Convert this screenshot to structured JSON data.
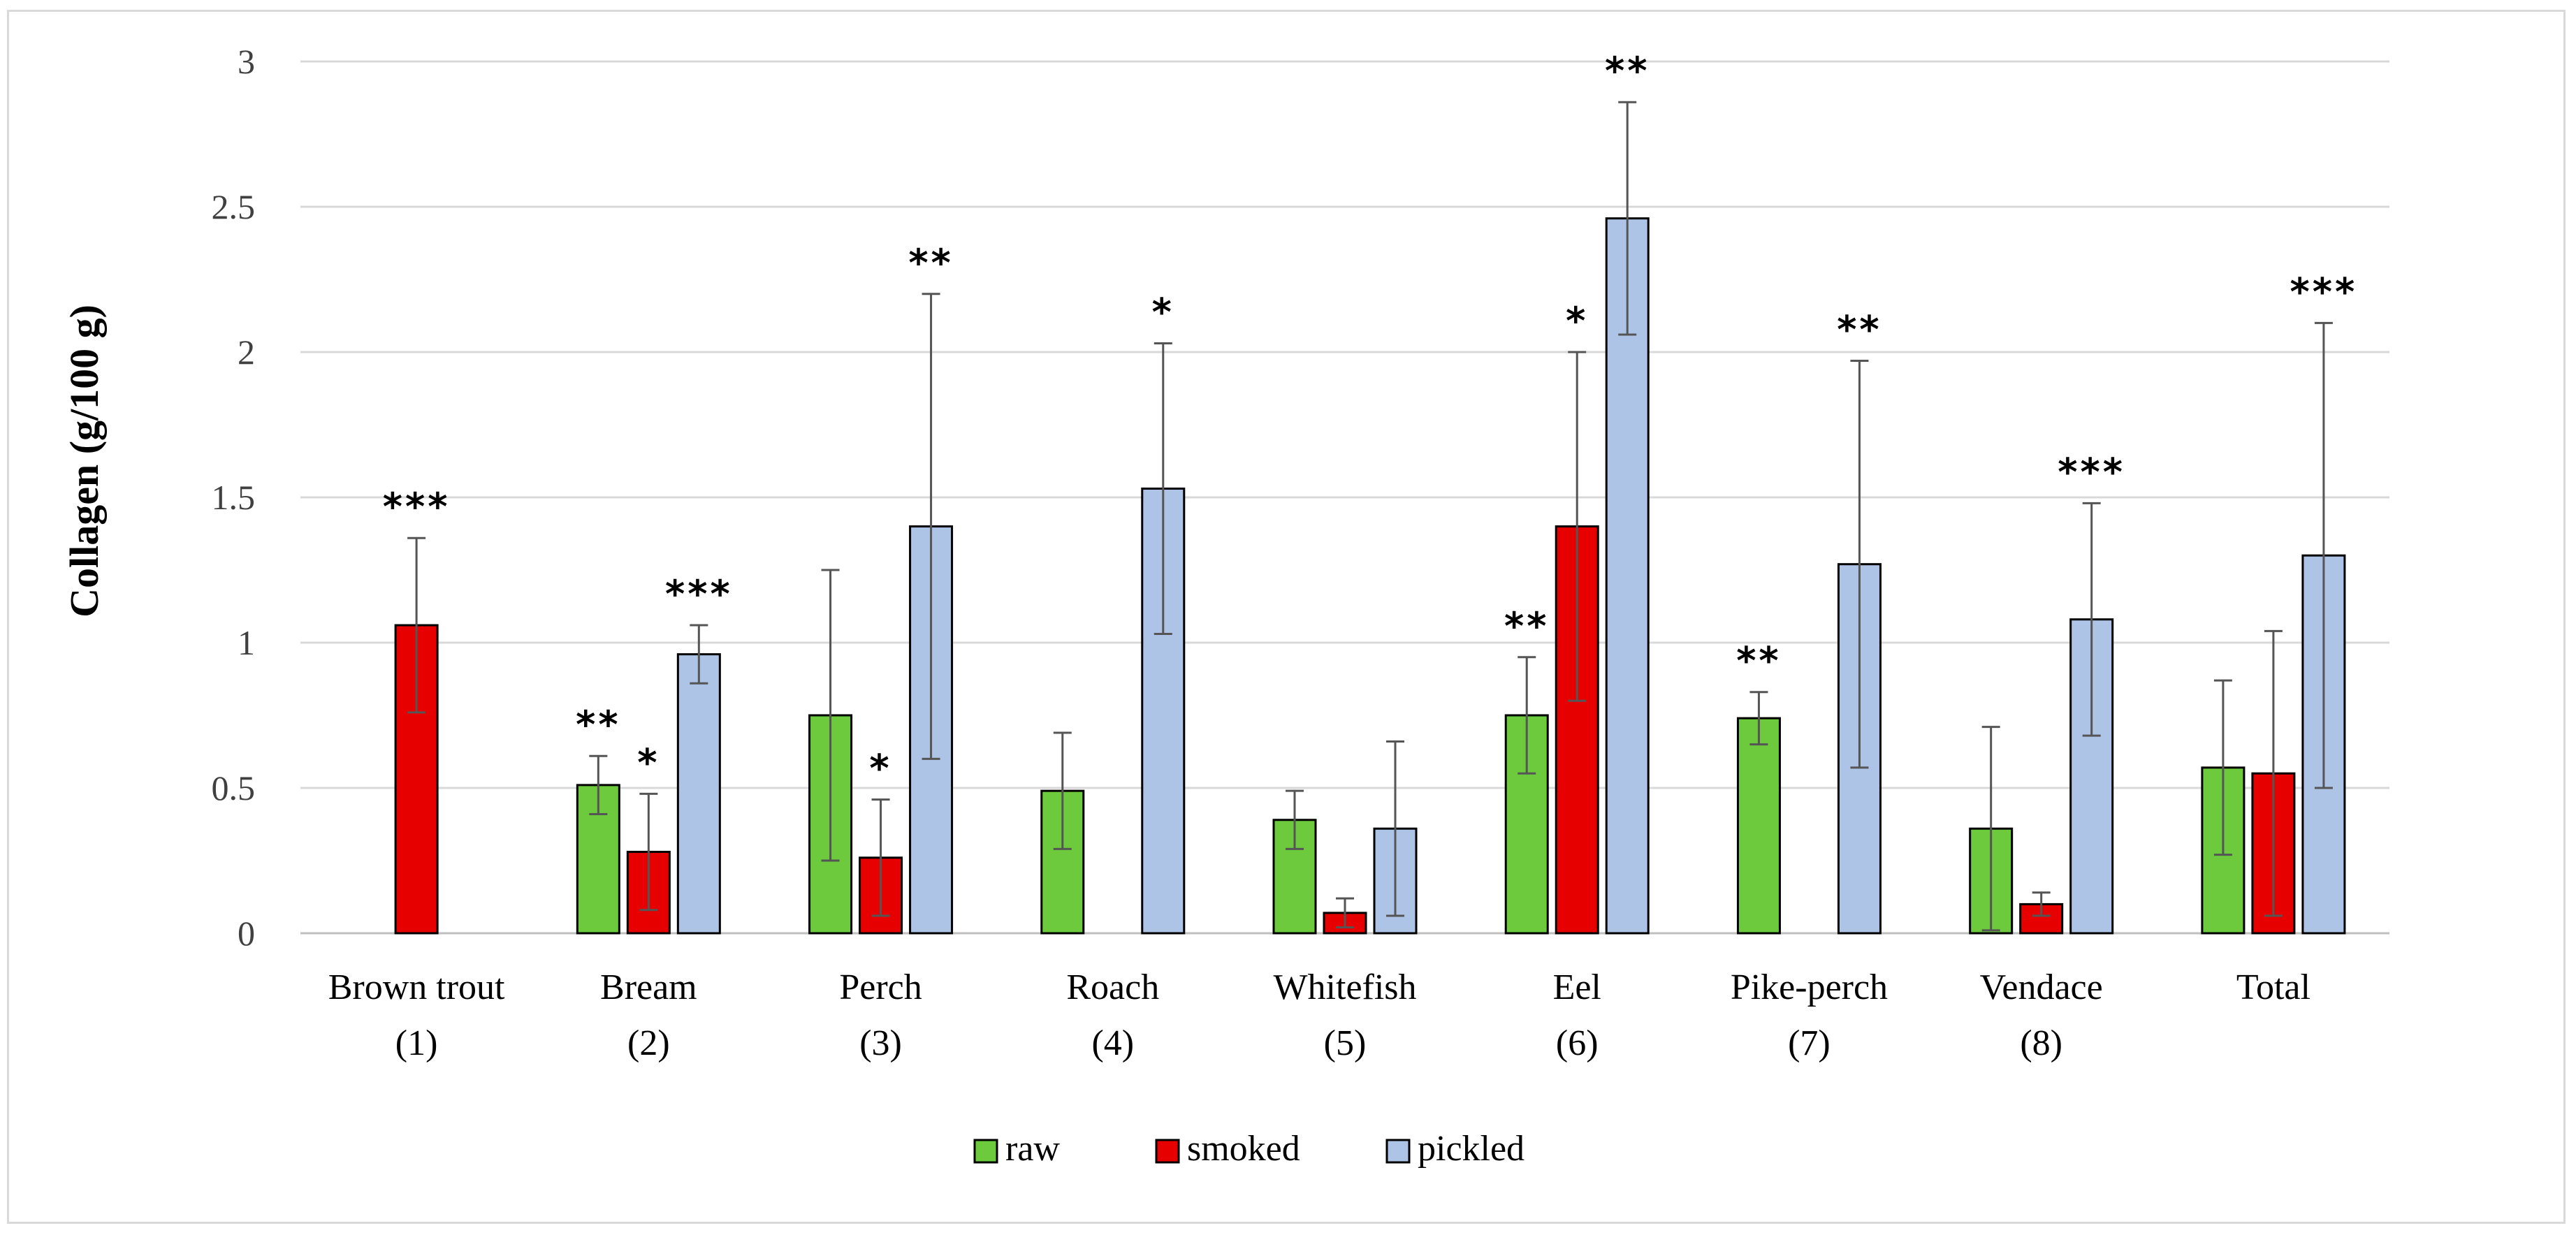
{
  "chart_data": {
    "type": "bar",
    "title": "",
    "xlabel": "",
    "ylabel": "Collagen (g/100 g)",
    "ylim": [
      0,
      3
    ],
    "yticks": [
      "0",
      "0.5",
      "1",
      "1.5",
      "2",
      "2.5",
      "3"
    ],
    "grid": true,
    "legend_position": "bottom",
    "categories": [
      [
        "Brown trout",
        "(1)"
      ],
      [
        "Bream",
        "(2)"
      ],
      [
        "Perch",
        "(3)"
      ],
      [
        "Roach",
        "(4)"
      ],
      [
        "Whitefish",
        "(5)"
      ],
      [
        "Eel",
        "(6)"
      ],
      [
        "Pike-perch",
        "(7)"
      ],
      [
        "Vendace",
        "(8)"
      ],
      [
        "Total",
        ""
      ]
    ],
    "series": [
      {
        "name": "raw",
        "color": "#6cca3c",
        "values": [
          null,
          0.51,
          0.75,
          0.49,
          0.39,
          0.75,
          0.74,
          0.36,
          0.57
        ],
        "errors": [
          null,
          0.1,
          0.5,
          0.2,
          0.1,
          0.2,
          0.09,
          0.35,
          0.3
        ],
        "significance": [
          "",
          "**",
          "",
          "",
          "",
          "**",
          "**",
          "",
          ""
        ]
      },
      {
        "name": "smoked",
        "color": "#e60000",
        "values": [
          1.06,
          0.28,
          0.26,
          null,
          0.07,
          1.4,
          null,
          0.1,
          0.55
        ],
        "errors": [
          0.3,
          0.2,
          0.2,
          null,
          0.05,
          0.6,
          null,
          0.04,
          0.49
        ],
        "significance": [
          "***",
          "*",
          "*",
          "",
          "",
          "*",
          "",
          "",
          ""
        ]
      },
      {
        "name": "pickled",
        "color": "#adc4e6",
        "values": [
          null,
          0.96,
          1.4,
          1.53,
          0.36,
          2.46,
          1.27,
          1.08,
          1.3
        ],
        "errors": [
          null,
          0.1,
          0.8,
          0.5,
          0.3,
          0.4,
          0.7,
          0.4,
          0.8
        ],
        "significance": [
          "",
          "***",
          "**",
          "*",
          "",
          "**",
          "**",
          "***",
          "***"
        ]
      }
    ]
  }
}
